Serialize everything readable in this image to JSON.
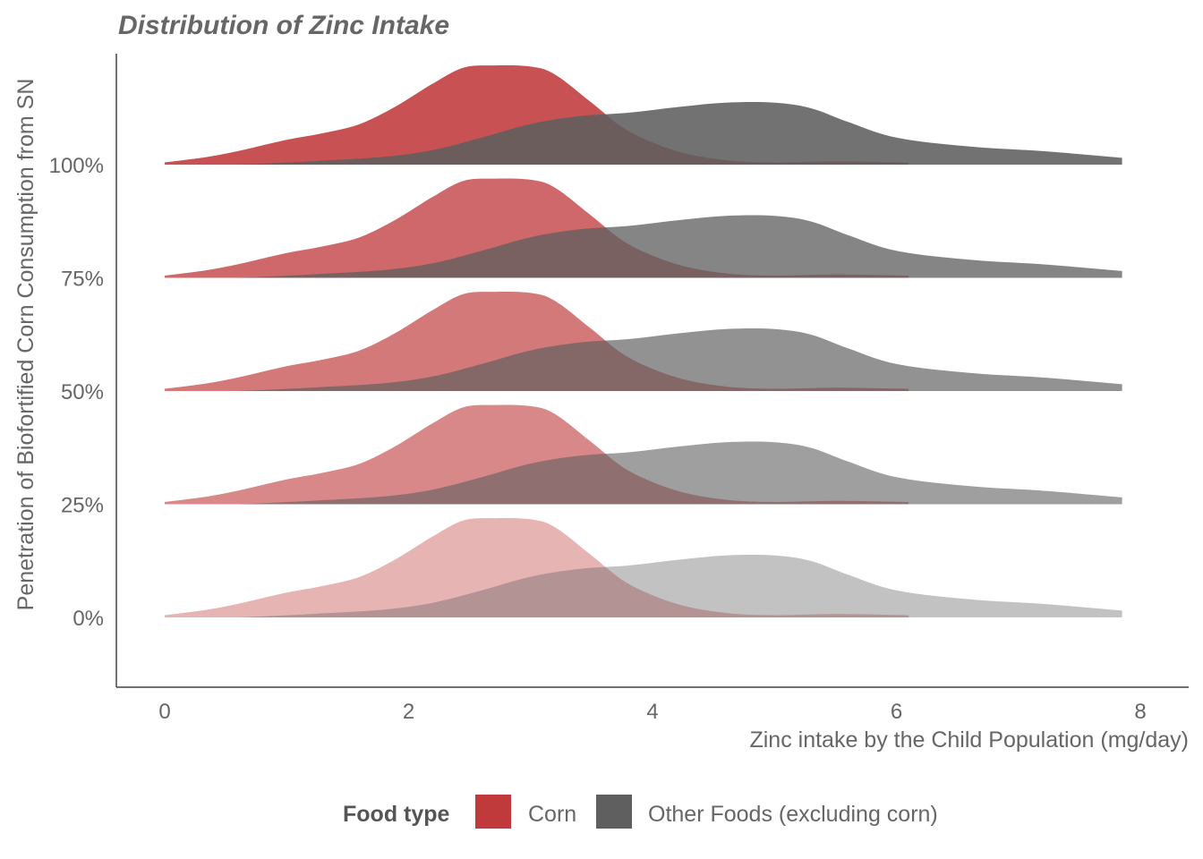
{
  "chart_data": {
    "type": "area",
    "subtype": "ridgeline-density",
    "title": "Distribution of Zinc Intake",
    "xlabel": "Zinc intake by the Child Population (mg/day)",
    "ylabel": "Penetration of Biofortified Corn Consumption from SN",
    "xlim": [
      -0.4,
      8.4
    ],
    "x_ticks": [
      "0",
      "2",
      "4",
      "6",
      "8"
    ],
    "x_tick_values": [
      0,
      2,
      4,
      6,
      8
    ],
    "categories": [
      "0%",
      "25%",
      "50%",
      "75%",
      "100%"
    ],
    "legend": {
      "title": "Food type",
      "position": "bottom"
    },
    "colors": {
      "Corn": "#c0393b",
      "Other Foods (excluding corn)": "#5f5f5f"
    },
    "grid": false,
    "series": [
      {
        "name": "Corn",
        "x": [
          0.0,
          0.3,
          0.6,
          1.0,
          1.3,
          1.6,
          1.9,
          2.2,
          2.45,
          2.7,
          3.0,
          3.2,
          3.5,
          3.8,
          4.2,
          4.6,
          5.0,
          5.5,
          6.1
        ],
        "density": [
          0.02,
          0.06,
          0.12,
          0.22,
          0.28,
          0.36,
          0.52,
          0.72,
          0.86,
          0.88,
          0.87,
          0.8,
          0.55,
          0.3,
          0.12,
          0.04,
          0.02,
          0.03,
          0.02
        ]
      },
      {
        "name": "Other Foods (excluding corn)",
        "x": [
          0.6,
          1.2,
          1.8,
          2.2,
          2.6,
          3.0,
          3.4,
          3.8,
          4.2,
          4.6,
          5.0,
          5.3,
          5.6,
          6.0,
          6.6,
          7.2,
          7.85
        ],
        "density": [
          0.0,
          0.03,
          0.07,
          0.13,
          0.24,
          0.36,
          0.43,
          0.46,
          0.51,
          0.55,
          0.55,
          0.5,
          0.38,
          0.24,
          0.16,
          0.12,
          0.06
        ]
      }
    ],
    "ridge_fill_opacity": [
      0.38,
      0.6,
      0.68,
      0.76,
      0.88
    ]
  }
}
